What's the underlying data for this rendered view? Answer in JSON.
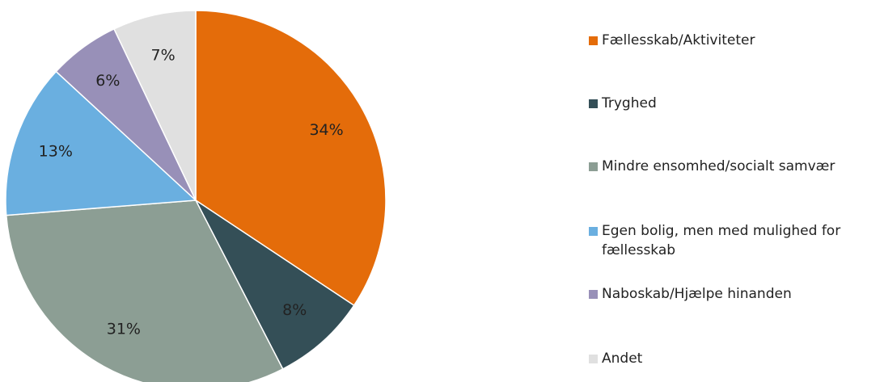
{
  "chart_data": {
    "type": "pie",
    "categories": [
      "Fællesskab/Aktiviteter",
      "Tryghed",
      "Mindre ensomhed/socialt samvær",
      "Egen bolig, men med mulighed for fællesskab",
      "Naboskab/Hjælpe hinanden",
      "Andet"
    ],
    "values": [
      34,
      8,
      31,
      13,
      6,
      7
    ],
    "value_labels": [
      "34%",
      "8%",
      "31%",
      "13%",
      "6%",
      "7%"
    ],
    "colors": [
      "#e46c0a",
      "#344f57",
      "#8c9e94",
      "#6aafe0",
      "#9890b8",
      "#e0e0e0"
    ],
    "legend": "right"
  }
}
